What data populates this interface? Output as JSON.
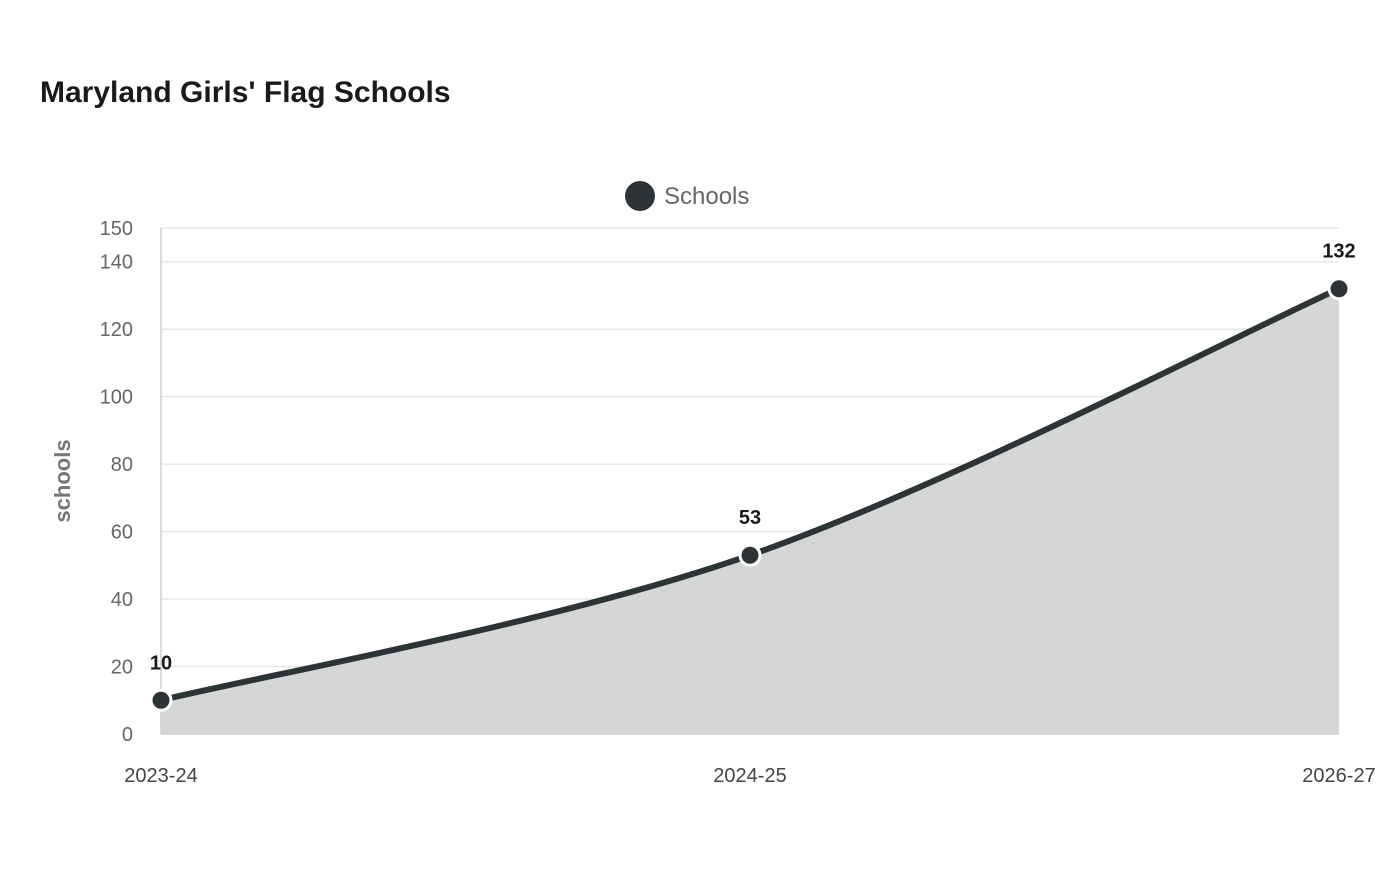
{
  "chart_data": {
    "type": "area",
    "title": "Maryland Girls' Flag Schools",
    "xlabel": "",
    "ylabel": "schools",
    "categories": [
      "2023-24",
      "2024-25",
      "2026-27"
    ],
    "series": [
      {
        "name": "Schools",
        "values": [
          10,
          53,
          132
        ],
        "color": "#2d3436",
        "fill_color": "#d5d6d6"
      }
    ],
    "data_labels": [
      "10",
      "53",
      "132"
    ],
    "ylim": [
      0,
      150
    ],
    "y_ticks": [
      0,
      20,
      40,
      60,
      80,
      100,
      120,
      140,
      150
    ],
    "y_tick_labels": [
      "0",
      "20",
      "40",
      "60",
      "80",
      "100",
      "120",
      "140",
      "150"
    ],
    "grid": true,
    "legend_position": "top-center",
    "colors": {
      "grid": "#e6e6e6",
      "axis": "#d0d0d0"
    }
  }
}
